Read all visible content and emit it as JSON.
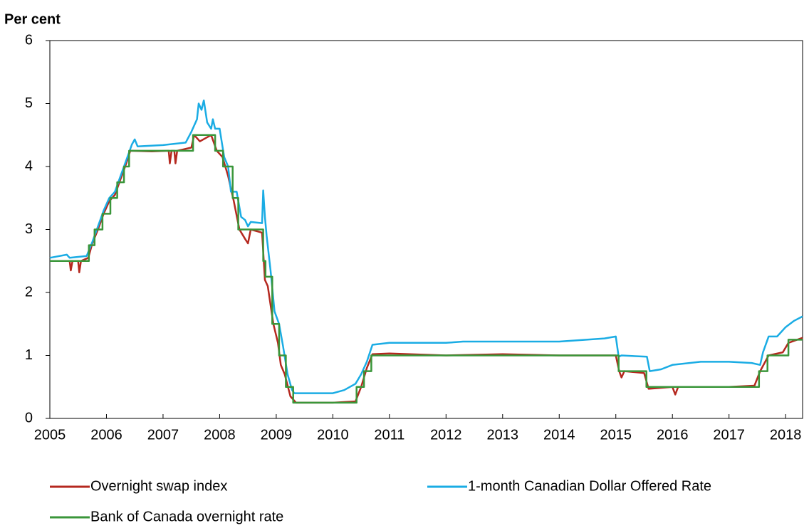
{
  "chart_data": {
    "type": "line",
    "y_label": "Per cent",
    "xlim": [
      2005,
      2018.3
    ],
    "xticks": [
      2005,
      2006,
      2007,
      2008,
      2009,
      2010,
      2011,
      2012,
      2013,
      2014,
      2015,
      2016,
      2017,
      2018
    ],
    "ylim": [
      0,
      6
    ],
    "yticks": [
      0,
      1,
      2,
      3,
      4,
      5,
      6
    ],
    "grid": false,
    "series": [
      {
        "name": "Overnight swap index",
        "color": "#b5281f",
        "x": [
          2005.0,
          2005.35,
          2005.37,
          2005.4,
          2005.5,
          2005.52,
          2005.55,
          2005.68,
          2005.75,
          2005.85,
          2005.95,
          2006.05,
          2006.15,
          2006.25,
          2006.35,
          2006.42,
          2006.8,
          2007.1,
          2007.12,
          2007.15,
          2007.2,
          2007.22,
          2007.25,
          2007.5,
          2007.55,
          2007.65,
          2007.75,
          2007.85,
          2007.95,
          2008.05,
          2008.15,
          2008.25,
          2008.35,
          2008.45,
          2008.5,
          2008.55,
          2008.75,
          2008.8,
          2008.85,
          2008.95,
          2009.03,
          2009.08,
          2009.15,
          2009.25,
          2009.35,
          2010.0,
          2010.4,
          2010.5,
          2010.6,
          2010.7,
          2011.0,
          2012.0,
          2013.0,
          2014.0,
          2015.0,
          2015.06,
          2015.1,
          2015.15,
          2015.5,
          2015.58,
          2016.0,
          2016.05,
          2016.1,
          2017.0,
          2017.45,
          2017.55,
          2017.7,
          2017.95,
          2018.05,
          2018.3
        ],
        "values": [
          2.5,
          2.5,
          2.35,
          2.5,
          2.5,
          2.32,
          2.5,
          2.55,
          2.78,
          3.0,
          3.25,
          3.45,
          3.55,
          3.8,
          4.05,
          4.25,
          4.24,
          4.25,
          4.05,
          4.25,
          4.25,
          4.05,
          4.25,
          4.3,
          4.5,
          4.4,
          4.45,
          4.5,
          4.25,
          4.15,
          3.85,
          3.45,
          3.0,
          2.85,
          2.78,
          3.0,
          2.95,
          2.2,
          2.1,
          1.5,
          1.2,
          0.85,
          0.7,
          0.35,
          0.25,
          0.25,
          0.27,
          0.5,
          0.8,
          1.02,
          1.03,
          1.0,
          1.02,
          1.0,
          1.0,
          0.75,
          0.65,
          0.75,
          0.72,
          0.47,
          0.5,
          0.38,
          0.5,
          0.5,
          0.52,
          0.75,
          1.0,
          1.05,
          1.2,
          1.28
        ]
      },
      {
        "name": "1-month Canadian Dollar Offered Rate",
        "color": "#1aace4",
        "x": [
          2005.0,
          2005.3,
          2005.35,
          2005.65,
          2005.75,
          2005.85,
          2005.95,
          2006.05,
          2006.15,
          2006.25,
          2006.35,
          2006.45,
          2006.5,
          2006.55,
          2007.0,
          2007.4,
          2007.5,
          2007.6,
          2007.63,
          2007.68,
          2007.72,
          2007.78,
          2007.85,
          2007.88,
          2007.92,
          2008.0,
          2008.08,
          2008.15,
          2008.2,
          2008.3,
          2008.38,
          2008.45,
          2008.5,
          2008.55,
          2008.75,
          2008.77,
          2008.8,
          2008.83,
          2008.9,
          2008.97,
          2009.05,
          2009.12,
          2009.2,
          2009.28,
          2009.32,
          2010.0,
          2010.2,
          2010.4,
          2010.5,
          2010.6,
          2010.7,
          2011.0,
          2012.0,
          2012.3,
          2013.0,
          2014.0,
          2014.8,
          2015.0,
          2015.05,
          2015.1,
          2015.55,
          2015.6,
          2015.8,
          2016.0,
          2016.5,
          2017.0,
          2017.4,
          2017.55,
          2017.6,
          2017.7,
          2017.85,
          2018.0,
          2018.15,
          2018.3
        ],
        "values": [
          2.55,
          2.6,
          2.55,
          2.58,
          2.8,
          3.05,
          3.3,
          3.5,
          3.6,
          3.85,
          4.1,
          4.35,
          4.43,
          4.32,
          4.34,
          4.38,
          4.55,
          4.75,
          5.0,
          4.9,
          5.05,
          4.7,
          4.6,
          4.75,
          4.6,
          4.6,
          4.15,
          4.0,
          3.6,
          3.6,
          3.2,
          3.15,
          3.05,
          3.12,
          3.1,
          3.62,
          3.2,
          2.9,
          2.35,
          1.7,
          1.5,
          1.15,
          0.7,
          0.45,
          0.4,
          0.4,
          0.45,
          0.55,
          0.7,
          0.9,
          1.17,
          1.2,
          1.2,
          1.22,
          1.22,
          1.22,
          1.27,
          1.3,
          0.98,
          1.0,
          0.98,
          0.75,
          0.78,
          0.85,
          0.9,
          0.9,
          0.88,
          0.85,
          1.05,
          1.3,
          1.3,
          1.45,
          1.55,
          1.62
        ]
      },
      {
        "name": "Bank of Canada overnight rate",
        "color": "#3a963a",
        "x": [
          2005.0,
          2005.69,
          2005.69,
          2005.79,
          2005.79,
          2005.93,
          2005.93,
          2006.07,
          2006.07,
          2006.19,
          2006.19,
          2006.31,
          2006.31,
          2006.4,
          2006.4,
          2007.53,
          2007.53,
          2007.92,
          2007.92,
          2008.06,
          2008.06,
          2008.23,
          2008.23,
          2008.33,
          2008.33,
          2008.77,
          2008.77,
          2008.81,
          2008.81,
          2008.93,
          2008.93,
          2009.05,
          2009.05,
          2009.17,
          2009.17,
          2009.3,
          2009.3,
          2010.42,
          2010.42,
          2010.55,
          2010.55,
          2010.68,
          2010.68,
          2015.05,
          2015.05,
          2015.54,
          2015.54,
          2017.53,
          2017.53,
          2017.68,
          2017.68,
          2018.05,
          2018.05,
          2018.3
        ],
        "values": [
          2.5,
          2.5,
          2.75,
          2.75,
          3.0,
          3.0,
          3.25,
          3.25,
          3.5,
          3.5,
          3.75,
          3.75,
          4.0,
          4.0,
          4.25,
          4.25,
          4.5,
          4.5,
          4.25,
          4.25,
          4.0,
          4.0,
          3.5,
          3.5,
          3.0,
          3.0,
          2.5,
          2.5,
          2.25,
          2.25,
          1.5,
          1.5,
          1.0,
          1.0,
          0.5,
          0.5,
          0.25,
          0.25,
          0.5,
          0.5,
          0.75,
          0.75,
          1.0,
          1.0,
          0.75,
          0.75,
          0.5,
          0.5,
          0.75,
          0.75,
          1.0,
          1.0,
          1.25,
          1.25
        ]
      }
    ]
  }
}
